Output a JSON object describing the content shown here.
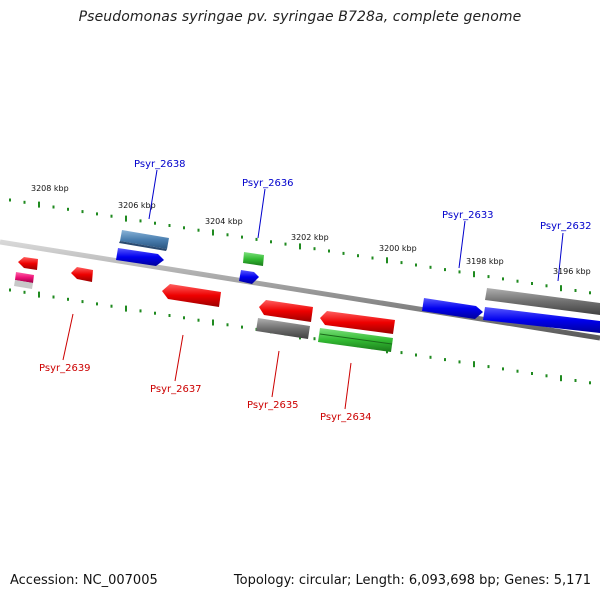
{
  "title": "Pseudomonas syringae pv. syringae B728a, complete genome",
  "footer": {
    "accession": "Accession: NC_007005",
    "summary": "Topology: circular; Length: 6,093,698 bp; Genes: 5,171"
  },
  "colors": {
    "backbone": "#9a9a9a",
    "tick": "#1f8a1f",
    "tick_label": "#111111",
    "forward_gene": "#0000ee",
    "forward_label": "#0000cc",
    "reverse_gene": "#ee0000",
    "reverse_label": "#cc0000",
    "rna_gene": "#33bb33",
    "pseudo_gene": "#777777",
    "steel_gene": "#4a7fb0",
    "pink_gene": "#ee1177"
  },
  "scale_ticks": [
    "3208 kbp",
    "3206 kbp",
    "3204 kbp",
    "3202 kbp",
    "3200 kbp",
    "3198 kbp",
    "3196 kbp"
  ],
  "forward_labels": [
    "Psyr_2638",
    "Psyr_2636",
    "Psyr_2633",
    "Psyr_2632"
  ],
  "reverse_labels": [
    "Psyr_2639",
    "Psyr_2637",
    "Psyr_2635",
    "Psyr_2634"
  ]
}
